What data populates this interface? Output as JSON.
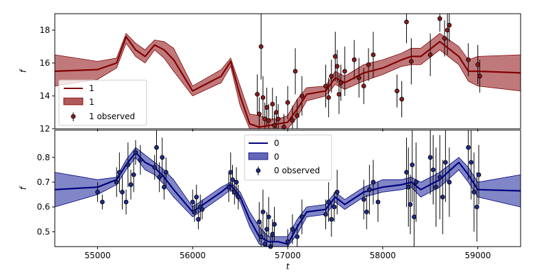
{
  "figure": {
    "xlabel": "t",
    "x_ticks": [
      55000,
      56000,
      57000,
      58000,
      59000
    ],
    "xlim": [
      54550,
      59450
    ],
    "colors": {
      "top_line": "#800000",
      "top_band": "#b0585a",
      "top_point": "#8b1a1a",
      "bottom_line": "#000080",
      "bottom_band": "#6268b8",
      "bottom_point": "#1f2a8a",
      "error_bar": "#000000"
    }
  },
  "chart_data": [
    {
      "type": "line",
      "panel": "top",
      "ylabel": "f",
      "ylim": [
        12,
        19
      ],
      "y_ticks": [
        12,
        14,
        16,
        18
      ],
      "grid": false,
      "legend_placement": "lower-left",
      "legend": [
        {
          "kind": "line",
          "label": "1"
        },
        {
          "kind": "band",
          "label": "1"
        },
        {
          "kind": "points",
          "label": "1 observed"
        }
      ],
      "model": {
        "x": [
          54550,
          55000,
          55200,
          55300,
          55400,
          55500,
          55600,
          55700,
          55800,
          56000,
          56300,
          56400,
          56500,
          56600,
          56700,
          56800,
          56900,
          57000,
          57100,
          57200,
          57400,
          57500,
          57600,
          57800,
          58000,
          58200,
          58300,
          58400,
          58600,
          58800,
          58900,
          59000,
          59450
        ],
        "mean": [
          15.5,
          15.6,
          16.0,
          17.6,
          16.8,
          16.4,
          17.1,
          16.8,
          16.2,
          14.3,
          15.2,
          16.1,
          14.0,
          12.3,
          12.1,
          12.2,
          12.3,
          12.4,
          13.2,
          14.1,
          14.3,
          15.1,
          14.8,
          15.4,
          15.7,
          16.2,
          16.4,
          16.4,
          17.3,
          16.4,
          15.5,
          15.5,
          15.4
        ],
        "upper": [
          16.5,
          16.1,
          16.3,
          17.8,
          17.2,
          16.8,
          17.4,
          17.3,
          16.9,
          14.6,
          15.6,
          16.3,
          14.6,
          12.9,
          12.8,
          12.6,
          12.6,
          12.8,
          13.8,
          14.5,
          14.6,
          15.5,
          15.2,
          15.9,
          16.2,
          16.6,
          16.9,
          16.9,
          17.8,
          17.0,
          16.2,
          16.4,
          16.5
        ],
        "lower": [
          14.6,
          15.0,
          15.7,
          17.2,
          16.4,
          16.0,
          16.8,
          16.3,
          15.5,
          14.0,
          14.8,
          15.8,
          13.4,
          11.9,
          11.6,
          11.8,
          11.9,
          12.0,
          12.7,
          13.7,
          14.0,
          14.7,
          14.4,
          14.9,
          15.3,
          15.8,
          15.9,
          15.9,
          16.8,
          15.9,
          14.9,
          14.6,
          14.3
        ]
      },
      "observed": {
        "x": [
          56680,
          56700,
          56720,
          56740,
          56760,
          56780,
          56800,
          56840,
          56860,
          56880,
          56900,
          56960,
          57000,
          57050,
          57080,
          57100,
          57150,
          57400,
          57430,
          57460,
          57500,
          57520,
          57540,
          57560,
          57600,
          57700,
          57750,
          57800,
          57850,
          57900,
          58150,
          58200,
          58250,
          58300,
          58500,
          58600,
          58650,
          58680,
          58700,
          58900,
          59000,
          59020
        ],
        "y": [
          14.1,
          12.9,
          17.0,
          13.9,
          12.6,
          13.3,
          12.5,
          13.5,
          12.2,
          13.0,
          12.6,
          12.1,
          13.6,
          12.5,
          15.5,
          12.8,
          14.0,
          14.6,
          13.9,
          15.2,
          16.4,
          15.8,
          14.1,
          14.8,
          15.5,
          16.2,
          15.1,
          14.6,
          15.9,
          16.5,
          14.3,
          13.8,
          18.5,
          16.1,
          16.5,
          18.7,
          17.5,
          18.0,
          18.3,
          16.2,
          15.9,
          15.2
        ],
        "err": [
          1.2,
          1.0,
          2.0,
          1.3,
          1.0,
          1.2,
          1.0,
          1.0,
          0.8,
          1.0,
          0.9,
          0.8,
          1.0,
          0.9,
          1.4,
          1.0,
          1.2,
          1.3,
          1.2,
          1.0,
          1.5,
          1.0,
          1.2,
          1.1,
          1.5,
          1.2,
          1.2,
          1.1,
          1.0,
          1.4,
          1.0,
          1.1,
          1.3,
          1.4,
          1.3,
          0.8,
          1.1,
          1.5,
          1.0,
          1.0,
          1.2,
          1.0
        ]
      }
    },
    {
      "type": "line",
      "panel": "bottom",
      "ylabel": "f",
      "ylim": [
        0.44,
        0.91
      ],
      "y_ticks": [
        0.5,
        0.6,
        0.7,
        0.8
      ],
      "grid": false,
      "legend_placement": "upper-center",
      "legend": [
        {
          "kind": "line",
          "label": "0"
        },
        {
          "kind": "band",
          "label": "0"
        },
        {
          "kind": "points",
          "label": "0 observed"
        }
      ],
      "model": {
        "x": [
          54550,
          55000,
          55200,
          55300,
          55400,
          55500,
          55600,
          55700,
          55800,
          56000,
          56300,
          56400,
          56500,
          56600,
          56700,
          56800,
          56900,
          57000,
          57100,
          57200,
          57400,
          57500,
          57600,
          57800,
          58000,
          58200,
          58300,
          58400,
          58600,
          58800,
          58900,
          59000,
          59450
        ],
        "mean": [
          0.67,
          0.68,
          0.71,
          0.77,
          0.82,
          0.78,
          0.76,
          0.72,
          0.67,
          0.58,
          0.66,
          0.69,
          0.64,
          0.55,
          0.48,
          0.46,
          0.46,
          0.45,
          0.52,
          0.58,
          0.59,
          0.64,
          0.61,
          0.66,
          0.68,
          0.69,
          0.7,
          0.67,
          0.71,
          0.78,
          0.73,
          0.67,
          0.665
        ],
        "upper": [
          0.74,
          0.71,
          0.72,
          0.79,
          0.84,
          0.81,
          0.78,
          0.75,
          0.71,
          0.6,
          0.68,
          0.7,
          0.66,
          0.58,
          0.52,
          0.48,
          0.48,
          0.48,
          0.55,
          0.6,
          0.61,
          0.66,
          0.63,
          0.68,
          0.71,
          0.71,
          0.72,
          0.7,
          0.74,
          0.8,
          0.76,
          0.7,
          0.73
        ],
        "lower": [
          0.6,
          0.65,
          0.69,
          0.75,
          0.8,
          0.75,
          0.73,
          0.69,
          0.64,
          0.56,
          0.64,
          0.67,
          0.62,
          0.52,
          0.45,
          0.44,
          0.44,
          0.43,
          0.49,
          0.56,
          0.57,
          0.62,
          0.59,
          0.64,
          0.66,
          0.67,
          0.68,
          0.64,
          0.68,
          0.75,
          0.7,
          0.64,
          0.6
        ]
      },
      "observed": {
        "x": [
          55000,
          55050,
          55200,
          55230,
          55260,
          55300,
          55320,
          55350,
          55380,
          55400,
          55450,
          55600,
          55620,
          55650,
          55680,
          55700,
          55720,
          56000,
          56020,
          56040,
          56060,
          56080,
          56100,
          56380,
          56400,
          56420,
          56440,
          56460,
          56480,
          56700,
          56720,
          56740,
          56760,
          56780,
          56800,
          56820,
          56840,
          56860,
          57000,
          57050,
          57100,
          57150,
          57400,
          57430,
          57460,
          57490,
          57520,
          57800,
          57830,
          57860,
          57900,
          57950,
          58250,
          58270,
          58290,
          58310,
          58330,
          58350,
          58500,
          58530,
          58560,
          58600,
          58630,
          58660,
          58700,
          58900,
          58930,
          58960,
          58990,
          59010
        ],
        "y": [
          0.66,
          0.62,
          0.7,
          0.74,
          0.66,
          0.62,
          0.77,
          0.69,
          0.73,
          0.82,
          0.79,
          0.76,
          0.84,
          0.72,
          0.8,
          0.68,
          0.74,
          0.62,
          0.58,
          0.64,
          0.55,
          0.6,
          0.59,
          0.68,
          0.74,
          0.71,
          0.66,
          0.7,
          0.64,
          0.54,
          0.48,
          0.58,
          0.45,
          0.51,
          0.56,
          0.44,
          0.49,
          0.53,
          0.46,
          0.51,
          0.48,
          0.56,
          0.57,
          0.62,
          0.55,
          0.6,
          0.66,
          0.63,
          0.58,
          0.67,
          0.7,
          0.62,
          0.74,
          0.68,
          0.61,
          0.77,
          0.56,
          0.7,
          0.8,
          0.75,
          0.68,
          0.72,
          0.64,
          0.78,
          0.7,
          0.84,
          0.78,
          0.66,
          0.6,
          0.73
        ],
        "err": [
          0.04,
          0.03,
          0.06,
          0.08,
          0.07,
          0.05,
          0.09,
          0.06,
          0.07,
          0.05,
          0.06,
          0.05,
          0.07,
          0.06,
          0.08,
          0.05,
          0.06,
          0.05,
          0.04,
          0.05,
          0.04,
          0.05,
          0.04,
          0.06,
          0.08,
          0.06,
          0.05,
          0.06,
          0.05,
          0.08,
          0.06,
          0.09,
          0.05,
          0.07,
          0.08,
          0.05,
          0.06,
          0.07,
          0.05,
          0.06,
          0.05,
          0.07,
          0.06,
          0.08,
          0.07,
          0.06,
          0.09,
          0.08,
          0.07,
          0.1,
          0.09,
          0.08,
          0.14,
          0.16,
          0.12,
          0.15,
          0.13,
          0.16,
          0.15,
          0.14,
          0.16,
          0.17,
          0.15,
          0.16,
          0.14,
          0.13,
          0.15,
          0.16,
          0.14,
          0.12
        ]
      }
    }
  ]
}
